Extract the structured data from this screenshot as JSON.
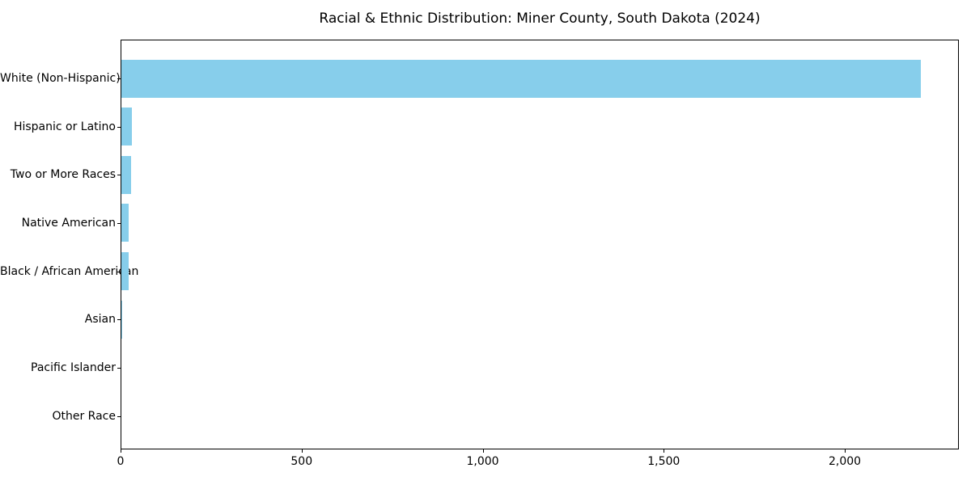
{
  "chart_data": {
    "type": "bar",
    "orientation": "horizontal",
    "title": "Racial & Ethnic Distribution: Miner County, South Dakota (2024)",
    "categories": [
      "White (Non-Hispanic)",
      "Hispanic or Latino",
      "Two or More Races",
      "Native American",
      "Black / African American",
      "Asian",
      "Pacific Islander",
      "Other Race"
    ],
    "values": [
      2207,
      29,
      27,
      20,
      19,
      2,
      0,
      0
    ],
    "xlabel": "",
    "ylabel": "",
    "xlim": [
      0,
      2315
    ],
    "xticks": [
      0,
      500,
      1000,
      1500,
      2000
    ],
    "xtick_labels": [
      "0",
      "500",
      "1,000",
      "1,500",
      "2,000"
    ],
    "yticks_side": "left",
    "grid": false,
    "legend": "none",
    "bar_color": "#87CEEB",
    "axis_color": "#000000",
    "text_color": "#000000",
    "background_color": "#ffffff"
  }
}
